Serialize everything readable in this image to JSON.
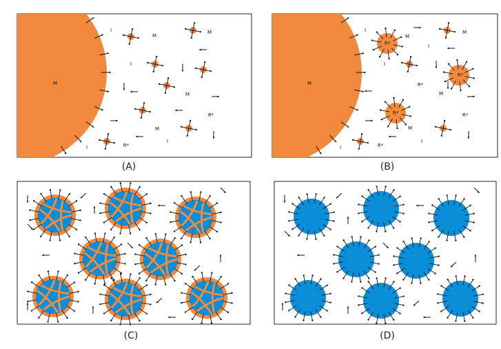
{
  "panels": [
    {
      "label": "(A)",
      "texts": [
        "M",
        "I",
        "M",
        "M",
        "I",
        "M",
        "R*",
        "M",
        "I",
        "I",
        "R*"
      ]
    },
    {
      "label": "(B)",
      "texts": [
        "M",
        "I",
        "R*",
        "M",
        "I",
        "M",
        "I",
        "R*",
        "M",
        "R*",
        "R*",
        "R*",
        "M",
        "I",
        "I",
        "R*"
      ]
    },
    {
      "label": "(C)",
      "texts": []
    },
    {
      "label": "(D)",
      "texts": []
    }
  ]
}
